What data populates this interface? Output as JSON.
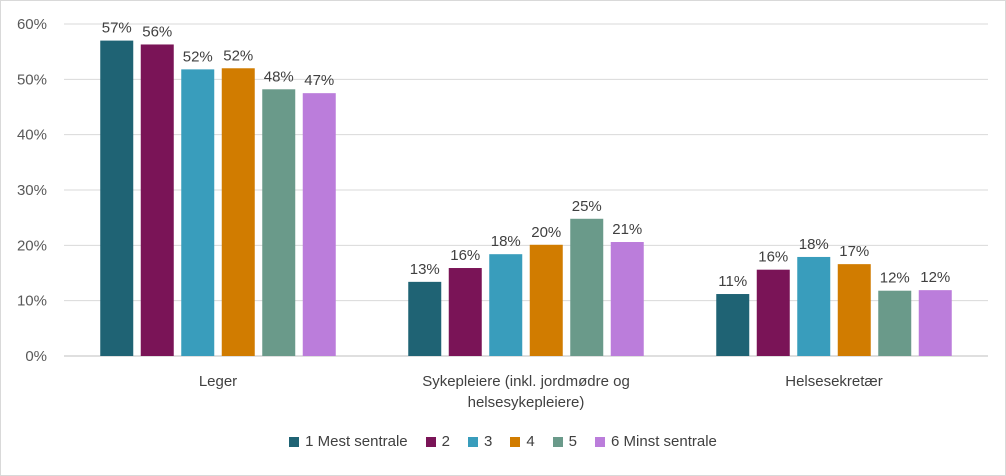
{
  "chart_data": {
    "type": "bar",
    "categories": [
      "Leger",
      "Sykepleiere (inkl. jordmødre og helsesykepleiere)",
      "Helsesekretær"
    ],
    "category_lines": [
      [
        "Leger"
      ],
      [
        "Sykepleiere (inkl. jordmødre og",
        "helsesykepleiere)"
      ],
      [
        "Helsesekretær"
      ]
    ],
    "series": [
      {
        "name": "1 Mest sentrale",
        "color": "#1f6374",
        "values": [
          57,
          13,
          11
        ]
      },
      {
        "name": "2",
        "color": "#7a1457",
        "values": [
          56,
          16,
          16
        ]
      },
      {
        "name": "3",
        "color": "#399dbc",
        "values": [
          52,
          18,
          18
        ]
      },
      {
        "name": "4",
        "color": "#d17c00",
        "values": [
          52,
          20,
          17
        ]
      },
      {
        "name": "5",
        "color": "#6a9a8a",
        "values": [
          48,
          25,
          12
        ]
      },
      {
        "name": "6 Minst sentrale",
        "color": "#bb7ddb",
        "values": [
          47,
          21,
          12
        ]
      }
    ],
    "bar_values": [
      [
        57.0,
        13.4,
        11.2
      ],
      [
        56.3,
        15.9,
        15.6
      ],
      [
        51.8,
        18.4,
        17.9
      ],
      [
        52.0,
        20.1,
        16.6
      ],
      [
        48.2,
        24.8,
        11.8
      ],
      [
        47.5,
        20.6,
        11.9
      ]
    ],
    "y_ticks": [
      "0%",
      "10%",
      "20%",
      "30%",
      "40%",
      "50%",
      "60%"
    ],
    "ylim": [
      0,
      60
    ],
    "value_suffix": "%",
    "gridlines": true,
    "legend_position": "bottom"
  }
}
